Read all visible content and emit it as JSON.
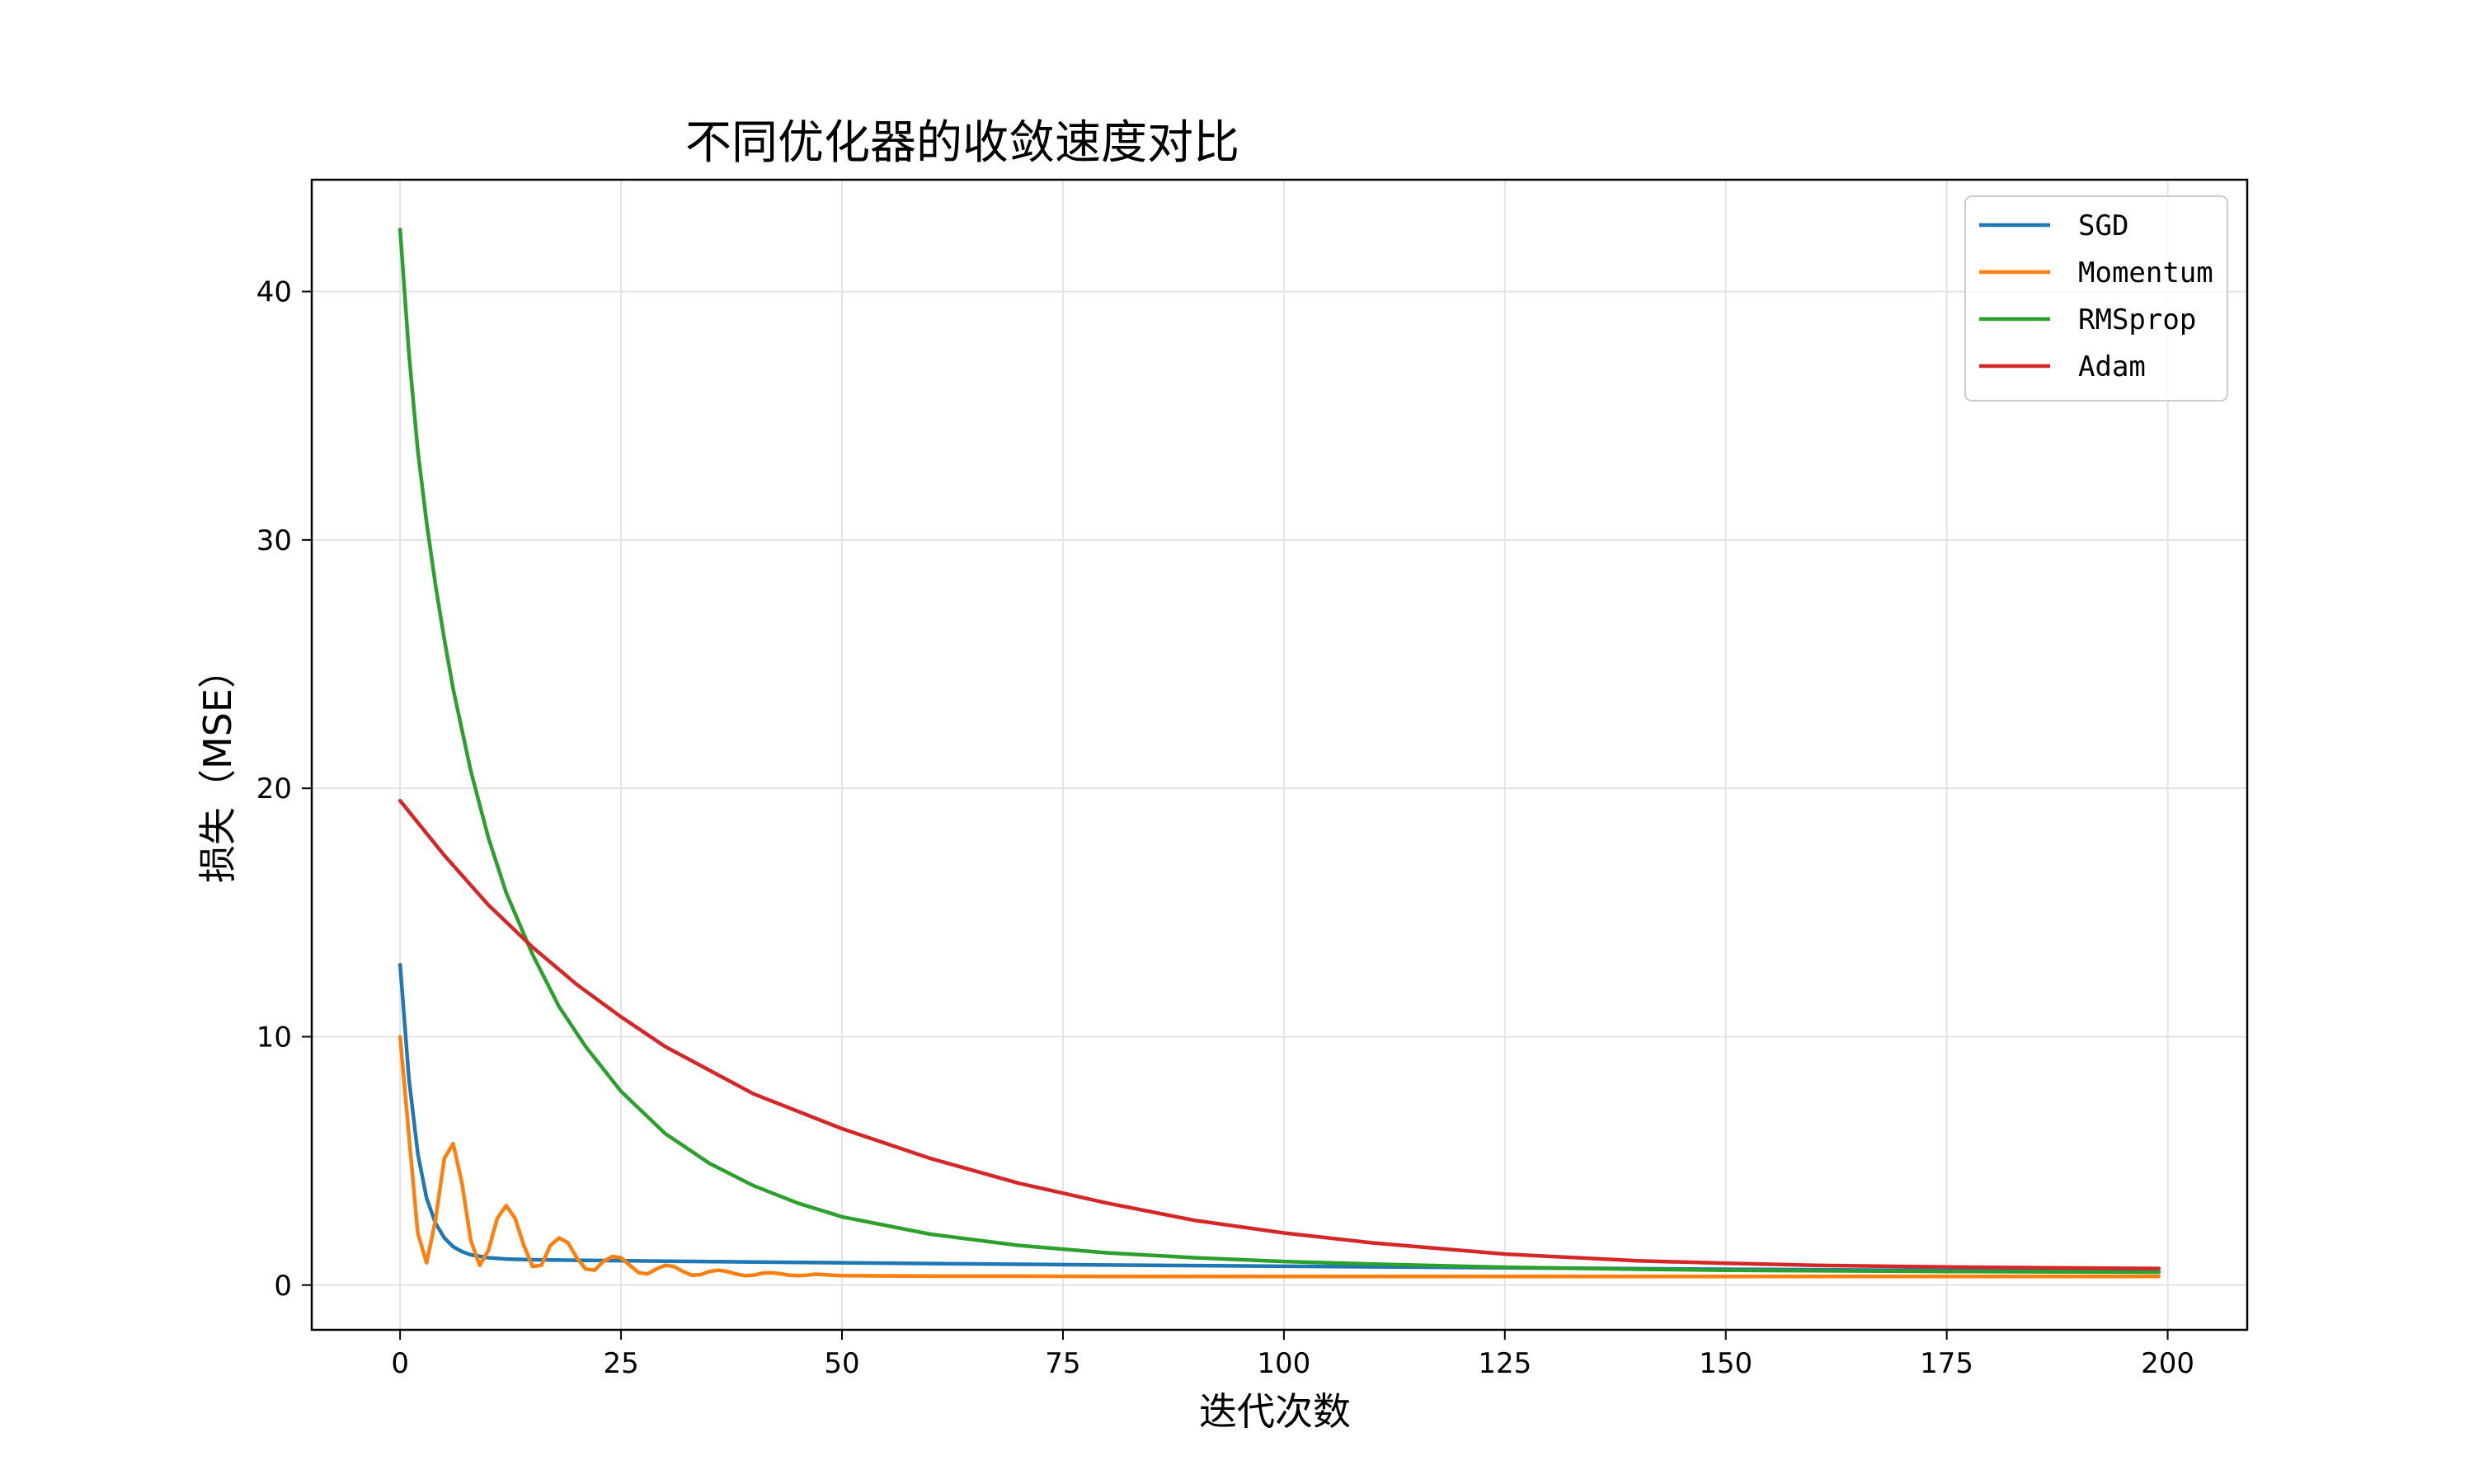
{
  "chart_data": {
    "type": "line",
    "title": "不同优化器的收敛速度对比",
    "xlabel": "迭代次数",
    "ylabel": "损失（MSE）",
    "xlim": [
      -10,
      209
    ],
    "ylim": [
      -1.8,
      44.5
    ],
    "xticks": [
      0,
      25,
      50,
      75,
      100,
      125,
      150,
      175,
      200
    ],
    "yticks": [
      0,
      10,
      20,
      30,
      40
    ],
    "grid": true,
    "legend_position": "top-right",
    "series": [
      {
        "name": "SGD",
        "color": "#1f77b4",
        "x": [
          0,
          1,
          2,
          3,
          4,
          5,
          6,
          7,
          8,
          10,
          12,
          15,
          20,
          30,
          40,
          60,
          80,
          100,
          125,
          150,
          175,
          199
        ],
        "y": [
          12.9,
          8.3,
          5.3,
          3.5,
          2.5,
          1.9,
          1.55,
          1.35,
          1.22,
          1.1,
          1.05,
          1.02,
          1.0,
          0.96,
          0.93,
          0.87,
          0.81,
          0.76,
          0.7,
          0.64,
          0.59,
          0.55
        ]
      },
      {
        "name": "Momentum",
        "color": "#ff7f0e",
        "x": [
          0,
          1,
          2,
          3,
          4,
          5,
          6,
          7,
          8,
          9,
          10,
          11,
          12,
          13,
          14,
          15,
          16,
          17,
          18,
          19,
          20,
          21,
          22,
          23,
          24,
          25,
          26,
          27,
          28,
          29,
          30,
          31,
          32,
          33,
          34,
          35,
          36,
          37,
          38,
          39,
          40,
          41,
          42,
          43,
          44,
          45,
          46,
          47,
          48,
          49,
          50,
          55,
          60,
          70,
          80,
          100,
          125,
          150,
          175,
          199
        ],
        "y": [
          10.0,
          6.0,
          2.1,
          0.9,
          2.6,
          5.1,
          5.7,
          4.1,
          1.8,
          0.8,
          1.4,
          2.7,
          3.2,
          2.7,
          1.6,
          0.75,
          0.8,
          1.6,
          1.9,
          1.7,
          1.1,
          0.65,
          0.6,
          0.95,
          1.15,
          1.1,
          0.8,
          0.5,
          0.45,
          0.65,
          0.8,
          0.75,
          0.55,
          0.4,
          0.42,
          0.55,
          0.6,
          0.55,
          0.45,
          0.38,
          0.4,
          0.48,
          0.5,
          0.46,
          0.4,
          0.38,
          0.4,
          0.44,
          0.42,
          0.4,
          0.38,
          0.37,
          0.36,
          0.36,
          0.35,
          0.35,
          0.35,
          0.35,
          0.35,
          0.35
        ]
      },
      {
        "name": "RMSprop",
        "color": "#2ca02c",
        "x": [
          0,
          1,
          2,
          3,
          4,
          5,
          6,
          8,
          10,
          12,
          15,
          18,
          21,
          25,
          30,
          35,
          40,
          45,
          50,
          60,
          70,
          80,
          90,
          100,
          110,
          125,
          140,
          150,
          175,
          199
        ],
        "y": [
          42.5,
          37.5,
          33.6,
          30.7,
          28.2,
          26.0,
          24.0,
          20.7,
          18.0,
          15.8,
          13.3,
          11.2,
          9.6,
          7.8,
          6.1,
          4.9,
          4.0,
          3.3,
          2.75,
          2.05,
          1.6,
          1.3,
          1.1,
          0.95,
          0.85,
          0.72,
          0.64,
          0.6,
          0.55,
          0.52
        ]
      },
      {
        "name": "Adam",
        "color": "#d62728",
        "x": [
          0,
          5,
          10,
          15,
          20,
          25,
          30,
          40,
          50,
          60,
          70,
          80,
          90,
          100,
          110,
          125,
          140,
          150,
          160,
          175,
          190,
          199
        ],
        "y": [
          19.5,
          17.3,
          15.3,
          13.6,
          12.1,
          10.8,
          9.6,
          7.7,
          6.3,
          5.1,
          4.1,
          3.3,
          2.6,
          2.1,
          1.7,
          1.25,
          0.98,
          0.88,
          0.8,
          0.73,
          0.69,
          0.67
        ]
      }
    ]
  }
}
